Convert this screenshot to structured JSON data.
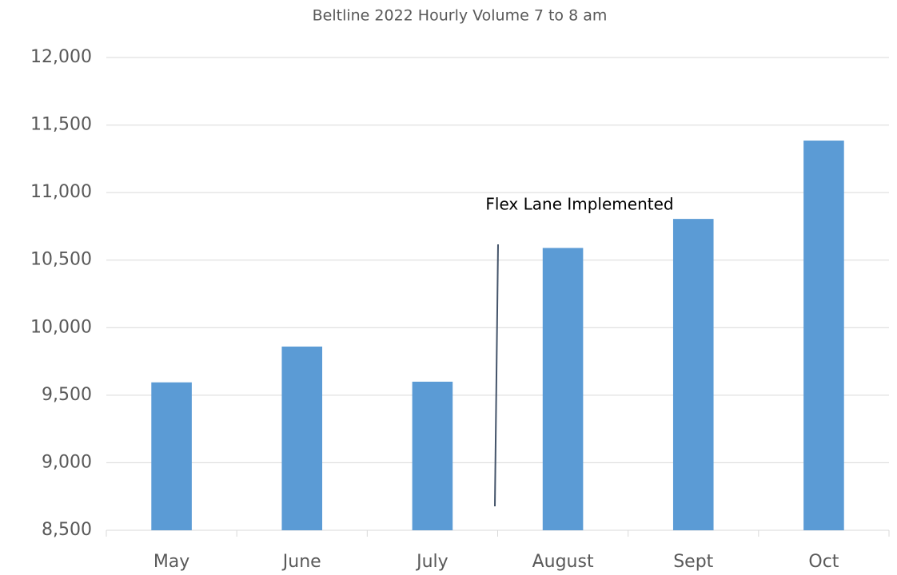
{
  "chart_data": {
    "type": "bar",
    "title": "Beltline 2022 Hourly Volume 7 to 8 am",
    "categories": [
      "May",
      "June",
      "July",
      "August",
      "Sept",
      "Oct"
    ],
    "values": [
      9595,
      9860,
      9600,
      10590,
      10805,
      11385
    ],
    "color": "#5b9bd5",
    "ylim": [
      8500,
      12000
    ],
    "yticks": [
      {
        "value": 8500,
        "label": "8,500"
      },
      {
        "value": 9000,
        "label": "9,000"
      },
      {
        "value": 9500,
        "label": "9,500"
      },
      {
        "value": 10000,
        "label": "10,000"
      },
      {
        "value": 10500,
        "label": "10,500"
      },
      {
        "value": 11000,
        "label": "11,000"
      },
      {
        "value": 11500,
        "label": "11,500"
      },
      {
        "value": 12000,
        "label": "12,000"
      }
    ],
    "grid": true,
    "annotation": "Flex Lane Implemented"
  }
}
